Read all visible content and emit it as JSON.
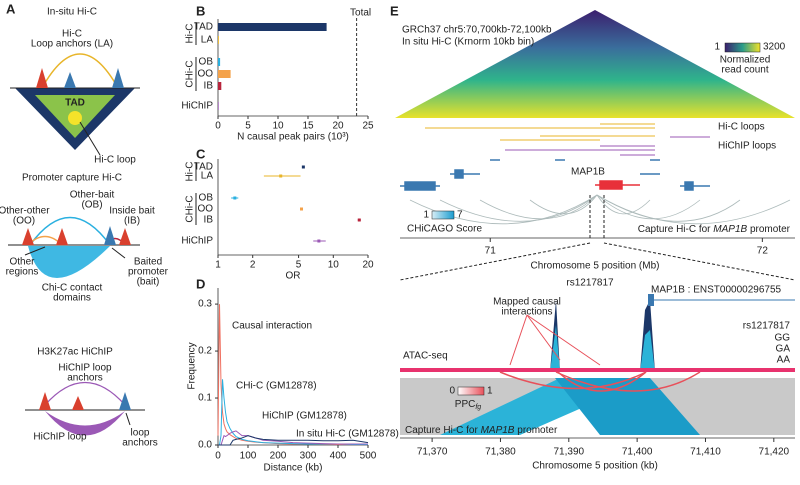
{
  "panel_labels": [
    "A",
    "B",
    "C",
    "D",
    "E"
  ],
  "panel_a": {
    "hic": {
      "title": "In-situ Hi-C",
      "loop_anchors": [
        "Hi-C",
        "Loop anchors (LA)"
      ],
      "tad": "TAD",
      "loop": "Hi-C loop"
    },
    "pchic": {
      "title": "Promoter capture Hi-C",
      "other_bait": [
        "Other-bait",
        "(OB)"
      ],
      "other_other": [
        "Other-other",
        "(OO)"
      ],
      "inside_bait": [
        "Inside bait",
        "(IB)"
      ],
      "other_regions": [
        "Other",
        "regions"
      ],
      "baited": [
        "Baited",
        "promoter",
        "(bait)"
      ],
      "domains": [
        "Chi-C contact",
        "domains"
      ]
    },
    "hichip": {
      "title": "H3K27ac HiChIP",
      "anchors": [
        "HiChIP loop",
        "anchors"
      ],
      "loop": "HiChIP loop",
      "loop_anchors": [
        "loop",
        "anchors"
      ]
    }
  },
  "chart_data": [
    {
      "type": "bar",
      "orientation": "horizontal",
      "categories": [
        "TAD",
        "LA",
        "OB",
        "OO",
        "IB",
        "HiChIP"
      ],
      "groups": [
        "Hi-C",
        "CHi-C"
      ],
      "values": [
        18.1,
        0.15,
        0.35,
        2.1,
        0.55,
        0.12
      ],
      "colors": [
        "#1c3768",
        "#e8b52a",
        "#2ab0e0",
        "#f4a24a",
        "#b8243c",
        "#9b59b6"
      ],
      "xlim": [
        0,
        25
      ],
      "xticks": [
        0,
        5,
        10,
        15,
        20,
        25
      ],
      "xlabel": "N causal peak pairs (10³)",
      "total": 23.1,
      "total_label": "Total"
    },
    {
      "type": "forest",
      "categories": [
        "TAD",
        "LA",
        "OB",
        "OO",
        "IB",
        "HiChIP"
      ],
      "groups": [
        "Hi-C",
        "CHi-C"
      ],
      "values": [
        5.5,
        3.5,
        1.4,
        5.3,
        16.8,
        7.5
      ],
      "lower": [
        5.4,
        2.5,
        1.3,
        5.2,
        16.3,
        6.7
      ],
      "upper": [
        5.6,
        5.2,
        1.5,
        5.4,
        17.3,
        8.6
      ],
      "colors": [
        "#1c3768",
        "#e8b52a",
        "#2ab0e0",
        "#f4a24a",
        "#b8243c",
        "#9b59b6"
      ],
      "xscale": "log",
      "xlim": [
        1,
        20
      ],
      "xticks": [
        1,
        2,
        5,
        10,
        20
      ],
      "xlabel": "OR"
    },
    {
      "type": "line",
      "x": [
        0,
        5,
        10,
        15,
        20,
        25,
        30,
        40,
        50,
        60,
        80,
        100,
        125,
        150,
        200,
        250,
        300,
        350,
        400,
        450,
        500
      ],
      "series": [
        {
          "name": "Causal interaction",
          "color": "#f07060",
          "values": [
            0.02,
            0.3,
            0.13,
            0.07,
            0.045,
            0.035,
            0.028,
            0.022,
            0.018,
            0.014,
            0.01,
            0.008,
            0.006,
            0.005,
            0.003,
            0.002,
            0.002,
            0.0015,
            0.001,
            0.001,
            0.001
          ]
        },
        {
          "name": "CHi-C (GM12878)",
          "color": "#2ab0e0",
          "values": [
            0,
            0,
            0.02,
            0.14,
            0.1,
            0.07,
            0.05,
            0.035,
            0.025,
            0.018,
            0.012,
            0.009,
            0.007,
            0.005,
            0.004,
            0.003,
            0.002,
            0.002,
            0.002,
            0.001,
            0.001
          ]
        },
        {
          "name": "HiChIP (GM12878)",
          "color": "#9b59b6",
          "values": [
            0,
            0,
            0,
            0.01,
            0.02,
            0.018,
            0.02,
            0.025,
            0.028,
            0.03,
            0.02,
            0.02,
            0.015,
            0.01,
            0.008,
            0.005,
            0.004,
            0.003,
            0.002,
            0.002,
            0.002
          ]
        },
        {
          "name": "In situ Hi-C (GM12878)",
          "color": "#1c3768",
          "values": [
            0,
            0,
            0,
            0,
            0,
            0,
            0,
            0,
            0.01,
            0.012,
            0.015,
            0.02,
            0.015,
            0.012,
            0.01,
            0.01,
            0.01,
            0.009,
            0.009,
            0.01,
            0.005
          ]
        }
      ],
      "xlim": [
        0,
        500
      ],
      "xticks": [
        0,
        100,
        200,
        300,
        400,
        500
      ],
      "ylim": [
        0,
        0.33
      ],
      "yticks": [
        {
          "value": 0,
          "label": "0.0"
        },
        0.1,
        0.2,
        0.3
      ],
      "xlabel": "Distance (kb)",
      "ylabel": "Frequency"
    }
  ],
  "panel_e": {
    "region": "GRCh37 chr5:70,700kb-72,100kb",
    "subtitle": "In situ Hi-C (Krnorm 10kb bin)",
    "heat_scale": {
      "min": 1,
      "max": 3200,
      "label": [
        "Normalized",
        "read count"
      ]
    },
    "hic_loops": "Hi-C loops",
    "hichip_loops": "HiChIP loops",
    "gene": "MAP1B",
    "chicago": {
      "min": 1,
      "max": 7,
      "label": "CHiCAGO Score"
    },
    "capture": [
      "Capture Hi-C for ",
      "MAP1B",
      " promoter"
    ],
    "top_axis": {
      "xlim": [
        70.65,
        72.12
      ],
      "ticks": [
        71,
        72
      ],
      "label": "Chromosome 5 position (Mb)"
    },
    "snp": "rs1217817",
    "transcript": "MAP1B : ENST00000296755",
    "mapped": [
      "Mapped causal",
      "interactions"
    ],
    "atac": "ATAC-seq",
    "genotype_title": "rs1217817",
    "genotypes": [
      "GG",
      "GA",
      "AA"
    ],
    "genotype_colors": [
      "#222222",
      "#2bb3d8",
      "#e8336e"
    ],
    "ppc": {
      "min": 0,
      "max": 1,
      "label": "PPC",
      "sub": "fg"
    },
    "bottom_axis": {
      "xlim": [
        71365.3,
        71423.1
      ],
      "ticks": [
        {
          "value": 71370,
          "label": "71,370"
        },
        {
          "value": 71380,
          "label": "71,380"
        },
        {
          "value": 71390,
          "label": "71,390"
        },
        {
          "value": 71400,
          "label": "71,400"
        },
        {
          "value": 71410,
          "label": "71,410"
        },
        {
          "value": 71420,
          "label": "71,420"
        }
      ],
      "label": "Chromosome 5 position (kb)"
    }
  }
}
